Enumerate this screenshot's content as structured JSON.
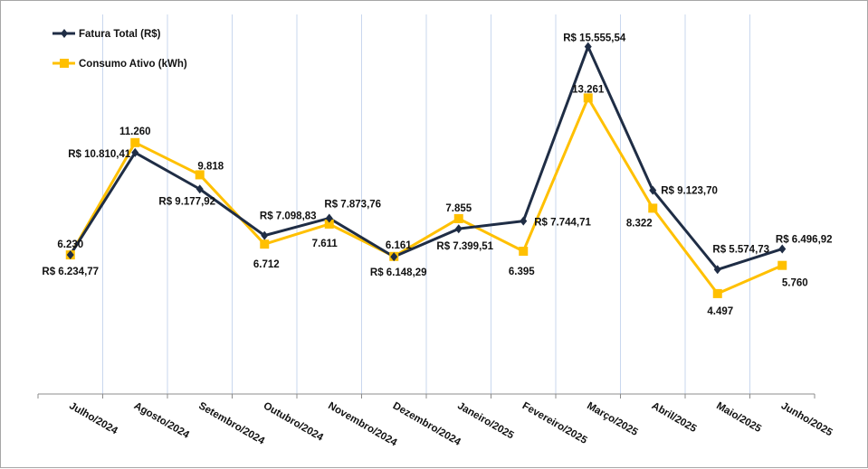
{
  "chart_data": {
    "type": "line",
    "title": "",
    "xlabel": "",
    "ylabel": "",
    "ylim": [
      0,
      17000
    ],
    "grid": "vertical",
    "legend_position": "top-left",
    "categories": [
      "Julho/2024",
      "Agosto/2024",
      "Setembro/2024",
      "Outubro/2024",
      "Novembro/2024",
      "Dezembro/2024",
      "Janeiro/2025",
      "Fevereiro/2025",
      "Março/2025",
      "Abril/2025",
      "Maio/2025",
      "Junho/2025"
    ],
    "series": [
      {
        "name": "Fatura Total (R$)",
        "color": "#1f2d45",
        "marker": "diamond",
        "values": [
          6234.77,
          10810.41,
          9177.92,
          7098.83,
          7873.76,
          6148.29,
          7399.51,
          7744.71,
          15555.54,
          9123.7,
          5574.73,
          6496.92
        ],
        "labels": [
          "R$ 6.234,77",
          "R$ 10.810,41",
          "R$ 9.177,92",
          "R$ 7.098,83",
          "R$ 7.873,76",
          "R$ 6.148,29",
          "R$ 7.399,51",
          "R$ 7.744,71",
          "R$ 15.555,54",
          "R$ 9.123,70",
          "R$ 5.574,73",
          "R$ 6.496,92"
        ]
      },
      {
        "name": "Consumo Ativo (kWh)",
        "color": "#ffc000",
        "marker": "square",
        "values": [
          6230,
          11260,
          9818,
          6712,
          7611,
          6161,
          7855,
          6395,
          13261,
          8322,
          4497,
          5760
        ],
        "labels": [
          "6.230",
          "11.260",
          "9.818",
          "6.712",
          "7.611",
          "6.161",
          "7.855",
          "6.395",
          "13.261",
          "8.322",
          "4.497",
          "5.760"
        ]
      }
    ]
  }
}
